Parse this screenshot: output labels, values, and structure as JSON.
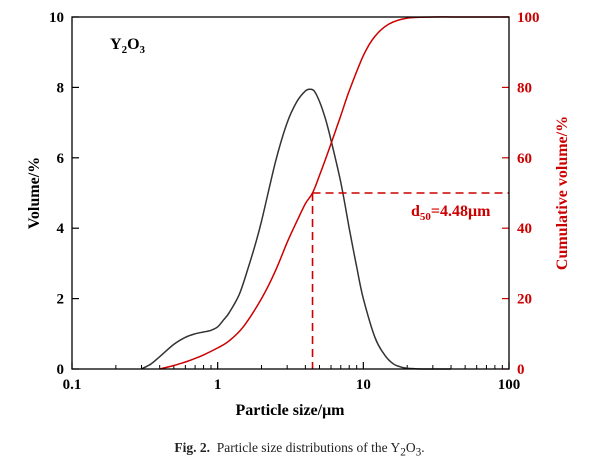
{
  "chart_data": {
    "type": "line",
    "x_scale": "log",
    "xlim": [
      0.1,
      100
    ],
    "ylim_left": [
      0,
      10
    ],
    "ylim_right": [
      0,
      100
    ],
    "xlabel": "Particle size/μm",
    "ylabel_left": "Volume/%",
    "ylabel_right": "Cumulative volume/%",
    "x_ticks": [
      {
        "value": 0.1,
        "label": "0.1"
      },
      {
        "value": 1,
        "label": "1"
      },
      {
        "value": 10,
        "label": "10"
      },
      {
        "value": 100,
        "label": "100"
      }
    ],
    "y_left_ticks": [
      "0",
      "2",
      "4",
      "6",
      "8",
      "10"
    ],
    "y_right_ticks": [
      "0",
      "20",
      "40",
      "60",
      "80",
      "100"
    ],
    "inset_label": {
      "main": "Y",
      "sub1": "2",
      "mid": "O",
      "sub2": "3"
    },
    "d50": {
      "value": 4.48,
      "cumulative": 50,
      "label_main": "d",
      "label_sub": "50",
      "label_value": "=4.48μm"
    },
    "series": [
      {
        "axis": "left",
        "color": "#333333",
        "x": [
          0.3,
          0.35,
          0.4,
          0.5,
          0.6,
          0.7,
          0.8,
          0.9,
          1.0,
          1.1,
          1.2,
          1.4,
          1.6,
          1.8,
          2.0,
          2.5,
          3.0,
          3.5,
          4.0,
          4.3,
          4.6,
          5.0,
          5.5,
          6.0,
          7.0,
          8.0,
          9.0,
          10,
          12,
          14,
          16,
          18,
          20,
          25,
          30,
          40
        ],
        "y": [
          0,
          0.15,
          0.35,
          0.7,
          0.9,
          1.0,
          1.05,
          1.1,
          1.2,
          1.4,
          1.6,
          2.1,
          2.8,
          3.5,
          4.2,
          5.9,
          7.0,
          7.6,
          7.9,
          7.95,
          7.9,
          7.6,
          7.1,
          6.5,
          5.3,
          4.0,
          2.9,
          2.0,
          0.9,
          0.4,
          0.15,
          0.06,
          0.02,
          0.0,
          0.0,
          0.0
        ]
      },
      {
        "axis": "right",
        "color": "#cc0000",
        "x": [
          0.4,
          0.5,
          0.6,
          0.7,
          0.8,
          1.0,
          1.2,
          1.5,
          2.0,
          2.5,
          3.0,
          3.5,
          4.0,
          4.48,
          5.0,
          6.0,
          7.0,
          8.0,
          10,
          12,
          15,
          20,
          30,
          50,
          100
        ],
        "y": [
          0,
          1,
          2,
          3,
          4,
          6,
          8,
          12,
          20,
          28,
          36,
          42,
          47,
          50,
          55,
          64,
          72,
          79,
          89,
          94.5,
          98,
          99.7,
          100,
          100,
          100
        ]
      }
    ]
  },
  "caption": {
    "label": "Fig. 2.",
    "text": "Particle size distributions of the Y",
    "sub": "2",
    "mid": "O",
    "sub2": "3",
    "end": "."
  }
}
